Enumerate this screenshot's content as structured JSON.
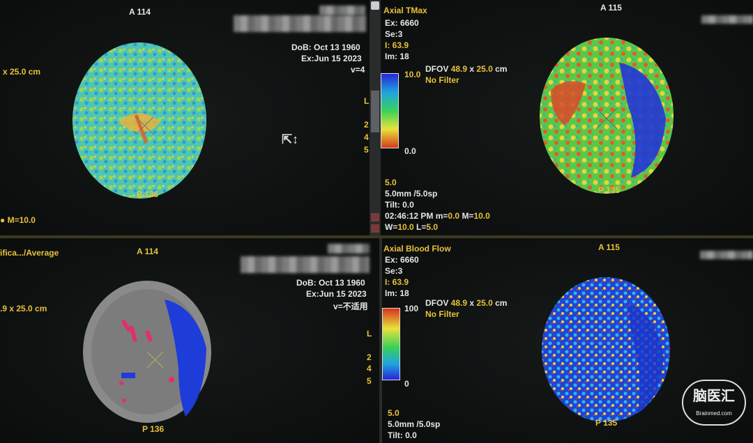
{
  "panes": {
    "tl": {
      "anterior": "A 114",
      "posterior": "P 136",
      "dob": "DoB: Oct 13 1960",
      "exam": "Ex:Jun 15 2023",
      "v": "v=4",
      "fov": "x 25.0 cm",
      "m": "M=10.0"
    },
    "tr": {
      "title": "Axial TMax",
      "ex": "Ex: 6660",
      "se": "Se:3",
      "i": "I: 63.9",
      "im": "Im: 18",
      "anterior": "A 115",
      "posterior": "P 135",
      "dfov_label": "DFOV",
      "dfov_a": "48.9",
      "dfov_x": "x",
      "dfov_b": "25.0",
      "dfov_unit": "cm",
      "filter": "No Filter",
      "scale_max": "10.0",
      "scale_min": "0.0",
      "side_l": "L",
      "side_2": "2",
      "side_4": "4",
      "side_5": "5",
      "thick": "5.0",
      "spacing": "5.0mm /5.0sp",
      "tilt": "Tilt: 0.0",
      "time": "02:46:12 PM",
      "m_label": "m=",
      "m_min": "0.0",
      "m_max_label": "M=",
      "m_max": "10.0",
      "w_label": "W=",
      "w_val": "10.0",
      "l_label": "L=",
      "l_val": "5.0"
    },
    "bl": {
      "title": "ifica.../Average",
      "anterior": "A 114",
      "posterior": "P 136",
      "dob": "DoB: Oct 13 1960",
      "exam": "Ex:Jun 15 2023",
      "v": "v=不适用",
      "fov": ".9 x 25.0 cm"
    },
    "br": {
      "title": "Axial Blood Flow",
      "ex": "Ex: 6660",
      "se": "Se:3",
      "i": "I: 63.9",
      "im": "Im: 18",
      "anterior": "A 115",
      "posterior": "P 135",
      "dfov_label": "DFOV",
      "dfov_a": "48.9",
      "dfov_x": "x",
      "dfov_b": "25.0",
      "dfov_unit": "cm",
      "filter": "No Filter",
      "scale_max": "100",
      "scale_min": "0",
      "side_l": "L",
      "side_2": "2",
      "side_4": "4",
      "side_5": "5",
      "thick": "5.0",
      "spacing": "5.0mm /5.0sp",
      "tilt": "Tilt: 0.0"
    }
  },
  "watermark": {
    "main": "脑医汇",
    "sub": "Brainmed.com"
  },
  "colors": {
    "accent_yellow": "#e8c23a",
    "text_white": "#e6e6e6",
    "perfusion_red": "#d8372b",
    "perfusion_blue": "#1e3cd8",
    "perfusion_green": "#3fbf4f",
    "brain_gray": "#8a8a8a"
  },
  "icons": {
    "cursor": "move-cursor-icon",
    "scroll_up": "scroll-up-icon"
  }
}
